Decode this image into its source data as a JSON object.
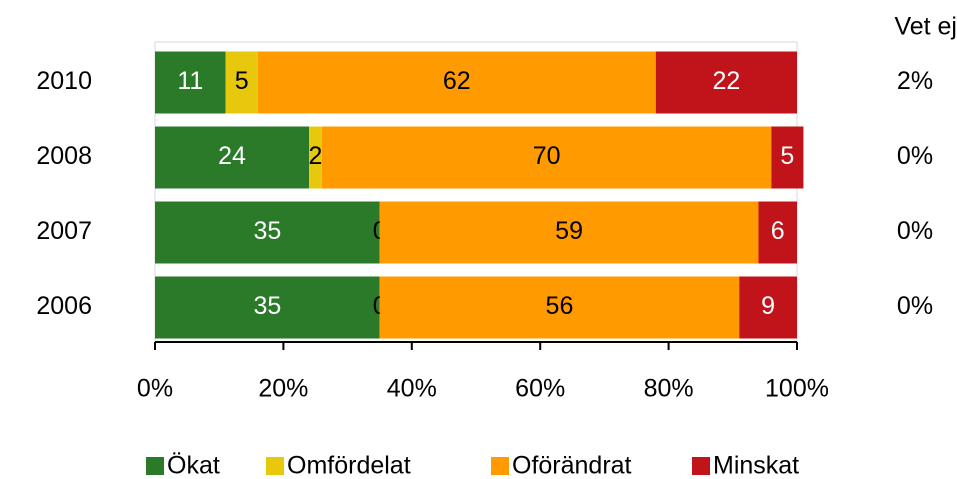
{
  "chart_data": {
    "type": "stacked_barh",
    "categories": [
      "2010",
      "2008",
      "2007",
      "2006"
    ],
    "series": [
      {
        "name": "Ökat",
        "color": "#2a7a2a",
        "values": [
          11,
          24,
          35,
          35
        ]
      },
      {
        "name": "Omfördelat",
        "color": "#e8c80c",
        "values": [
          5,
          2,
          0,
          0
        ]
      },
      {
        "name": "Oförändrat",
        "color": "#ff9a00",
        "values": [
          62,
          70,
          59,
          56
        ]
      },
      {
        "name": "Minskat",
        "color": "#c0141a",
        "values": [
          22,
          5,
          6,
          9
        ]
      }
    ],
    "xlim": [
      0,
      100
    ],
    "xticks": [
      {
        "value": 0,
        "label": "0%"
      },
      {
        "value": 20,
        "label": "20%"
      },
      {
        "value": 40,
        "label": "40%"
      },
      {
        "value": 60,
        "label": "60%"
      },
      {
        "value": 80,
        "label": "80%"
      },
      {
        "value": 100,
        "label": "100%"
      }
    ],
    "vet_ej": {
      "title": "Vet ej",
      "values": [
        2,
        0,
        0,
        0
      ],
      "value_labels": [
        "2%",
        "0%",
        "0%",
        "0%"
      ]
    },
    "legend": "bottom"
  }
}
